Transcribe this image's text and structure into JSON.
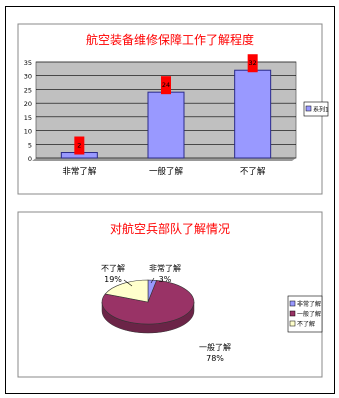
{
  "chart_data": [
    {
      "type": "bar",
      "title": "航空装备维修保障工作了解程度",
      "categories": [
        "非常了解",
        "一般了解",
        "不了解"
      ],
      "series": [
        {
          "name": "系列1",
          "values": [
            2,
            24,
            32
          ]
        }
      ],
      "data_labels": [
        "2",
        "24",
        "32"
      ],
      "yticks": [
        "0",
        "5",
        "10",
        "15",
        "20",
        "25",
        "30",
        "35"
      ],
      "ylim": [
        0,
        35
      ],
      "grid": true,
      "legend_position": "right",
      "colors": {
        "bar": "#9999ff",
        "bar_stroke": "#2a2a88",
        "plot_bg": "#c0c0c0",
        "title": "#ff0000",
        "label_bg": "#ff0000"
      }
    },
    {
      "type": "pie",
      "title": "对航空兵部队了解情况",
      "categories": [
        "非常了解",
        "一般了解",
        "不了解"
      ],
      "values": [
        3,
        78,
        19
      ],
      "slice_labels": [
        "非常了解\n3%",
        "一般了解\n78%",
        "不了解\n19%"
      ],
      "legend_position": "right",
      "colors": {
        "非常了解": "#9999ff",
        "一般了解": "#993366",
        "不了解": "#ffffcc",
        "title": "#ff0000"
      }
    }
  ]
}
